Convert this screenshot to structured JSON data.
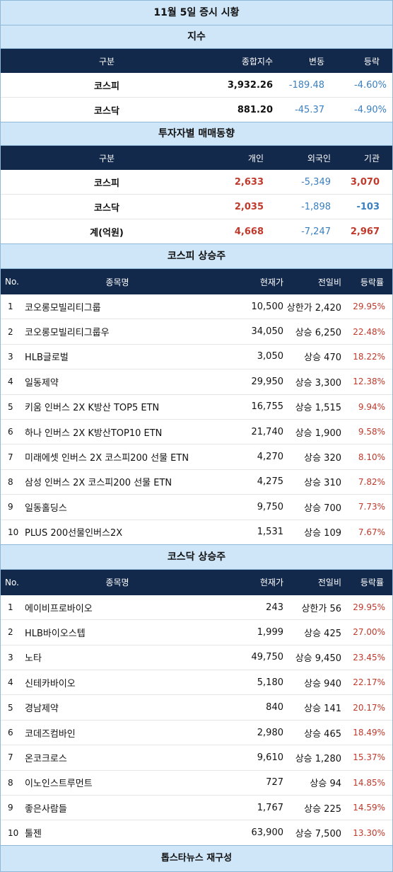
{
  "title": "11월 5일 증시 시황",
  "index": {
    "section_title": "지수",
    "headers": [
      "구분",
      "종합지수",
      "변동",
      "등락"
    ],
    "rows": [
      {
        "name": "코스피",
        "value": "3,932.26",
        "change": "-189.48",
        "rate": "-4.60%"
      },
      {
        "name": "코스닥",
        "value": "881.20",
        "change": "-45.37",
        "rate": "-4.90%"
      }
    ]
  },
  "investor": {
    "section_title": "투자자별 매매동향",
    "headers": [
      "구분",
      "개인",
      "외국인",
      "기관"
    ],
    "rows": [
      {
        "name": "코스피",
        "individual": "2,633",
        "foreign": "-5,349",
        "institution": "3,070"
      },
      {
        "name": "코스닥",
        "individual": "2,035",
        "foreign": "-1,898",
        "institution": "-103"
      },
      {
        "name": "계(억원)",
        "individual": "4,668",
        "foreign": "-7,247",
        "institution": "2,967"
      }
    ]
  },
  "kospi_gainers": {
    "section_title": "코스피 상승주",
    "headers": [
      "No.",
      "종목명",
      "현재가",
      "전일비",
      "등락률"
    ],
    "rows": [
      {
        "no": "1",
        "name": "코오롱모빌리티그룹",
        "price": "10,500",
        "change": "상한가 2,420",
        "rate": "29.95%"
      },
      {
        "no": "2",
        "name": "코오롱모빌리티그룹우",
        "price": "34,050",
        "change": "상승 6,250",
        "rate": "22.48%"
      },
      {
        "no": "3",
        "name": "HLB글로벌",
        "price": "3,050",
        "change": "상승 470",
        "rate": "18.22%"
      },
      {
        "no": "4",
        "name": "일동제약",
        "price": "29,950",
        "change": "상승 3,300",
        "rate": "12.38%"
      },
      {
        "no": "5",
        "name": "키움 인버스 2X K방산 TOP5 ETN",
        "price": "16,755",
        "change": "상승 1,515",
        "rate": "9.94%"
      },
      {
        "no": "6",
        "name": "하나 인버스 2X K방산TOP10 ETN",
        "price": "21,740",
        "change": "상승 1,900",
        "rate": "9.58%"
      },
      {
        "no": "7",
        "name": "미래에셋 인버스 2X 코스피200 선물 ETN",
        "price": "4,270",
        "change": "상승 320",
        "rate": "8.10%"
      },
      {
        "no": "8",
        "name": "삼성 인버스 2X 코스피200 선물 ETN",
        "price": "4,275",
        "change": "상승 310",
        "rate": "7.82%"
      },
      {
        "no": "9",
        "name": "일동홀딩스",
        "price": "9,750",
        "change": "상승 700",
        "rate": "7.73%"
      },
      {
        "no": "10",
        "name": "PLUS 200선물인버스2X",
        "price": "1,531",
        "change": "상승 109",
        "rate": "7.67%"
      }
    ]
  },
  "kosdaq_gainers": {
    "section_title": "코스닥 상승주",
    "headers": [
      "No.",
      "종목명",
      "현재가",
      "전일비",
      "등락률"
    ],
    "rows": [
      {
        "no": "1",
        "name": "에이비프로바이오",
        "price": "243",
        "change": "상한가 56",
        "rate": "29.95%"
      },
      {
        "no": "2",
        "name": "HLB바이오스텝",
        "price": "1,999",
        "change": "상승 425",
        "rate": "27.00%"
      },
      {
        "no": "3",
        "name": "노타",
        "price": "49,750",
        "change": "상승 9,450",
        "rate": "23.45%"
      },
      {
        "no": "4",
        "name": "신테카바이오",
        "price": "5,180",
        "change": "상승 940",
        "rate": "22.17%"
      },
      {
        "no": "5",
        "name": "경남제약",
        "price": "840",
        "change": "상승 141",
        "rate": "20.17%"
      },
      {
        "no": "6",
        "name": "코데즈컴바인",
        "price": "2,980",
        "change": "상승 465",
        "rate": "18.49%"
      },
      {
        "no": "7",
        "name": "온코크로스",
        "price": "9,610",
        "change": "상승 1,280",
        "rate": "15.37%"
      },
      {
        "no": "8",
        "name": "이노인스트루먼트",
        "price": "727",
        "change": "상승 94",
        "rate": "14.85%"
      },
      {
        "no": "9",
        "name": "좋은사람들",
        "price": "1,767",
        "change": "상승 225",
        "rate": "14.59%"
      },
      {
        "no": "10",
        "name": "툴젠",
        "price": "63,900",
        "change": "상승 7,500",
        "rate": "13.30%"
      }
    ]
  },
  "footer": "톱스타뉴스 재구성",
  "colors": {
    "header_bg": "#13294b",
    "band_bg": "#cfe6f8",
    "up": "#c0392b",
    "down": "#3a7fc0"
  }
}
